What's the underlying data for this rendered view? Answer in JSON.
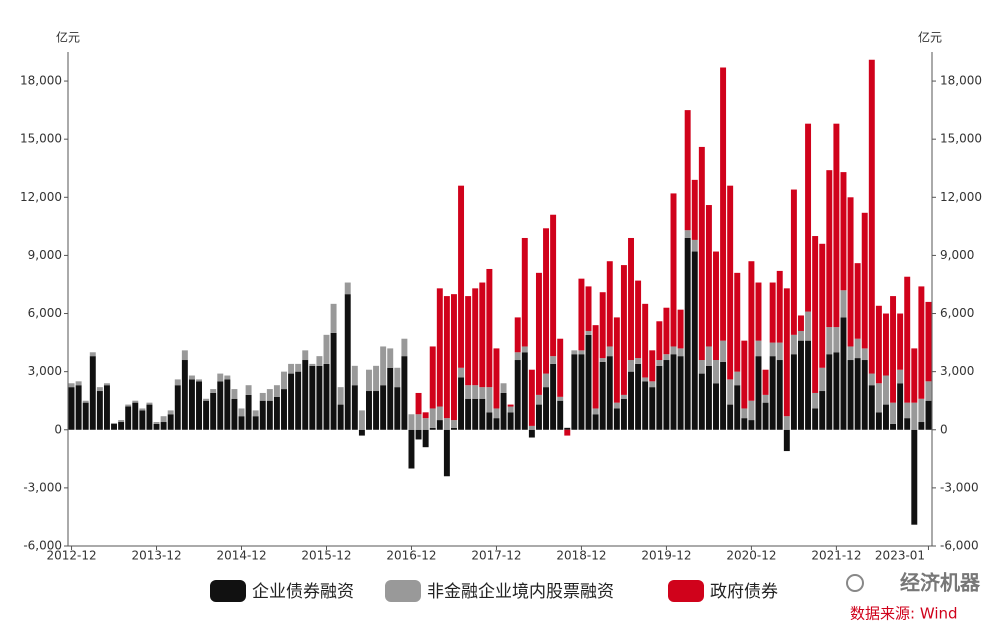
{
  "chart_data": {
    "type": "stacked_bar",
    "y_unit": "亿元",
    "y2_unit": "亿元",
    "categories": [
      "2012-12",
      null,
      null,
      null,
      null,
      null,
      null,
      null,
      null,
      null,
      null,
      null,
      "2013-12",
      null,
      null,
      null,
      null,
      null,
      null,
      null,
      null,
      null,
      null,
      null,
      "2014-12",
      null,
      null,
      null,
      null,
      null,
      null,
      null,
      null,
      null,
      null,
      null,
      "2015-12",
      null,
      null,
      null,
      null,
      null,
      null,
      null,
      null,
      null,
      null,
      null,
      "2016-12",
      null,
      null,
      null,
      null,
      null,
      null,
      null,
      null,
      null,
      null,
      null,
      "2017-12",
      null,
      null,
      null,
      null,
      null,
      null,
      null,
      null,
      null,
      null,
      null,
      "2018-12",
      null,
      null,
      null,
      null,
      null,
      null,
      null,
      null,
      null,
      null,
      null,
      "2019-12",
      null,
      null,
      null,
      null,
      null,
      null,
      null,
      null,
      null,
      null,
      null,
      "2020-12",
      null,
      null,
      null,
      null,
      null,
      null,
      null,
      null,
      null,
      null,
      null,
      "2021-12",
      null,
      null,
      null,
      null,
      null,
      null,
      null,
      null,
      null,
      null,
      null,
      null,
      "2023-01"
    ],
    "series": [
      {
        "name": "企业债券融资",
        "color": "#111111",
        "values": [
          2200,
          2300,
          1400,
          3800,
          2000,
          2300,
          300,
          400,
          1200,
          1400,
          1000,
          1300,
          300,
          400,
          800,
          2300,
          3600,
          2600,
          2500,
          1500,
          1900,
          2500,
          2600,
          1600,
          700,
          1800,
          700,
          1500,
          1500,
          1700,
          2100,
          2900,
          3000,
          3600,
          3300,
          3300,
          3400,
          5000,
          1300,
          7000,
          2300,
          -300,
          2000,
          2000,
          2300,
          3200,
          2200,
          3800,
          -2000,
          -500,
          -900,
          100,
          500,
          -2400,
          100,
          2700,
          1600,
          1600,
          1600,
          900,
          600,
          1900,
          900,
          3600,
          4000,
          -400,
          1300,
          2200,
          3400,
          1500,
          100,
          3900,
          3900,
          4900,
          800,
          3500,
          3800,
          1100,
          1600,
          3000,
          3400,
          2500,
          2200,
          3300,
          3600,
          3900,
          3800,
          9900,
          9200,
          2900,
          3300,
          2400,
          3500,
          1300,
          2300,
          600,
          500,
          3800,
          1400,
          3800,
          3600,
          -1100,
          3900,
          4600,
          4600,
          1100,
          2000,
          3900,
          4000,
          5800,
          3600,
          3700,
          3600,
          2300,
          900,
          1300,
          300,
          2400,
          600,
          -4900,
          400,
          1500
        ]
      },
      {
        "name": "非金融企业境内股票融资",
        "color": "#999999",
        "values": [
          200,
          200,
          100,
          200,
          200,
          100,
          50,
          100,
          100,
          100,
          100,
          100,
          100,
          300,
          200,
          300,
          500,
          200,
          100,
          100,
          200,
          400,
          200,
          500,
          400,
          500,
          300,
          400,
          600,
          600,
          900,
          500,
          400,
          500,
          100,
          500,
          1500,
          1500,
          900,
          600,
          1000,
          1000,
          1100,
          1300,
          2000,
          1000,
          1000,
          900,
          800,
          800,
          600,
          1000,
          700,
          600,
          400,
          500,
          700,
          700,
          600,
          1300,
          500,
          500,
          300,
          400,
          300,
          200,
          500,
          700,
          400,
          200,
          0,
          200,
          200,
          200,
          300,
          200,
          500,
          300,
          200,
          600,
          300,
          200,
          300,
          300,
          300,
          400,
          400,
          400,
          600,
          700,
          1000,
          1200,
          1100,
          1300,
          700,
          500,
          1000,
          800,
          400,
          700,
          900,
          700,
          1000,
          500,
          1500,
          800,
          1200,
          1400,
          1300,
          1400,
          700,
          1000,
          600,
          600,
          1500,
          1500,
          1100,
          700,
          800,
          1400,
          1200,
          1000
        ]
      },
      {
        "name": "政府债券",
        "color": "#d0021b",
        "values": [
          0,
          0,
          0,
          0,
          0,
          0,
          0,
          0,
          0,
          0,
          0,
          0,
          0,
          0,
          0,
          0,
          0,
          0,
          0,
          0,
          0,
          0,
          0,
          0,
          0,
          0,
          0,
          0,
          0,
          0,
          0,
          0,
          0,
          0,
          0,
          0,
          0,
          0,
          0,
          0,
          0,
          0,
          0,
          0,
          0,
          0,
          0,
          0,
          0,
          1100,
          300,
          3200,
          6100,
          6300,
          6500,
          9400,
          4600,
          5000,
          5400,
          6100,
          3100,
          0,
          100,
          1800,
          5600,
          2900,
          6300,
          7500,
          7300,
          3000,
          -300,
          0,
          3700,
          2300,
          4300,
          3400,
          4400,
          4400,
          6700,
          6300,
          4000,
          3800,
          1600,
          2000,
          2400,
          7900,
          2000,
          6200,
          3100,
          11000,
          7300,
          5600,
          14100,
          10000,
          5100,
          3500,
          7200,
          3000,
          1300,
          3100,
          3700,
          6600,
          7500,
          800,
          9700,
          8100,
          6400,
          8100,
          10500,
          6100,
          7700,
          3900,
          7000,
          16200,
          4000,
          3200,
          5500,
          2900,
          6500,
          2800,
          5800,
          4100
        ]
      }
    ],
    "ylim": [
      -6000,
      19500
    ],
    "yticks": [
      {
        "value": -6000,
        "label": "-6,000"
      },
      {
        "value": -3000,
        "label": "-3,000"
      },
      0,
      {
        "value": 3000,
        "label": "3,000"
      },
      {
        "value": 6000,
        "label": "6,000"
      },
      {
        "value": 9000,
        "label": "9,000"
      },
      {
        "value": 12000,
        "label": "12,000"
      },
      {
        "value": 15000,
        "label": "15,000"
      },
      {
        "value": 18000,
        "label": "18,000"
      }
    ],
    "y2lim": [
      -6000,
      19500
    ],
    "y2ticks": [
      {
        "value": -6000,
        "label": "-6,000"
      },
      {
        "value": -3000,
        "label": "-3,000"
      },
      0,
      {
        "value": 3000,
        "label": "3,000"
      },
      {
        "value": 6000,
        "label": "6,000"
      },
      {
        "value": 9000,
        "label": "9,000"
      },
      {
        "value": 12000,
        "label": "12,000"
      },
      {
        "value": 15000,
        "label": "15,000"
      },
      {
        "value": 18000,
        "label": "18,000"
      }
    ],
    "legend": "bottom",
    "source": "数据来源: Wind",
    "watermark": "经济机器"
  }
}
